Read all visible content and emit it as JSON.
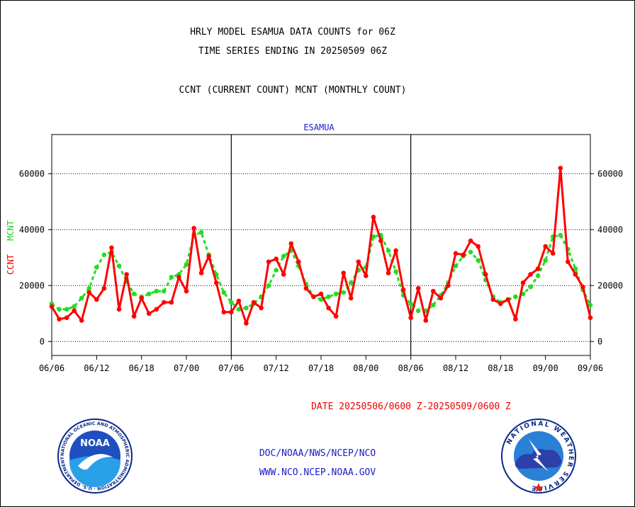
{
  "header": {
    "line1": "HRLY MODEL ESAMUA DATA COUNTS for 06Z",
    "line2": "TIME SERIES ENDING IN 20250509 06Z",
    "line3": "CCNT (CURRENT COUNT) MCNT (MONTHLY COUNT)"
  },
  "chart_data": {
    "type": "line",
    "title": "ESAMUA",
    "ylabel_ccnt": "CCNT",
    "ylabel_mcnt": "MCNT",
    "ylim": [
      -5000,
      74000
    ],
    "yticks": [
      0,
      20000,
      40000,
      60000
    ],
    "ytick_labels": [
      "0",
      "20000",
      "40000",
      "60000"
    ],
    "xticks": [
      "06/06",
      "06/12",
      "06/18",
      "07/00",
      "07/06",
      "07/12",
      "07/18",
      "08/00",
      "08/06",
      "08/12",
      "08/18",
      "09/00",
      "09/06"
    ],
    "x_hours": [
      0,
      72
    ],
    "grid": true,
    "series": [
      {
        "name": "CCNT",
        "color": "#ff0000",
        "x": [
          0,
          1,
          2,
          3,
          4,
          5,
          6,
          7,
          8,
          9,
          10,
          11,
          12,
          13,
          14,
          15,
          16,
          17,
          18,
          19,
          20,
          21,
          22,
          23,
          24,
          25,
          26,
          27,
          28,
          29,
          30,
          31,
          32,
          33,
          34,
          35,
          36,
          37,
          38,
          39,
          40,
          41,
          42,
          43,
          44,
          45,
          46,
          47,
          48,
          49,
          50,
          51,
          52,
          53,
          54,
          55,
          56,
          57,
          58,
          59,
          60,
          61,
          62,
          63,
          64,
          65,
          66,
          67,
          68,
          69,
          70,
          71,
          72
        ],
        "values": [
          12500,
          8000,
          8500,
          11000,
          7500,
          17500,
          15000,
          19000,
          33500,
          11500,
          24000,
          9000,
          15500,
          10000,
          11500,
          14000,
          14000,
          23000,
          18000,
          40500,
          24500,
          30500,
          21000,
          10500,
          10500,
          14500,
          6500,
          14000,
          12000,
          28500,
          29500,
          24000,
          35000,
          28500,
          19000,
          16000,
          17000,
          12000,
          9000,
          24500,
          15500,
          28500,
          23500,
          44500,
          36000,
          24500,
          32500,
          18500,
          8500,
          19000,
          7500,
          18000,
          15500,
          20000,
          31500,
          31000,
          36000,
          34000,
          24000,
          15000,
          13500,
          15000,
          8000,
          21000,
          24000,
          26000,
          34000,
          31500,
          62000,
          28500,
          24000,
          19500,
          8500
        ]
      },
      {
        "name": "MCNT",
        "color": "#22dd22",
        "x": [
          0,
          1,
          2,
          3,
          4,
          5,
          6,
          7,
          8,
          9,
          10,
          11,
          12,
          13,
          14,
          15,
          16,
          17,
          18,
          19,
          20,
          21,
          22,
          23,
          24,
          25,
          26,
          27,
          28,
          29,
          30,
          31,
          32,
          33,
          34,
          35,
          36,
          37,
          38,
          39,
          40,
          41,
          42,
          43,
          44,
          45,
          46,
          47,
          48,
          49,
          50,
          51,
          52,
          53,
          54,
          55,
          56,
          57,
          58,
          59,
          60,
          61,
          62,
          63,
          64,
          65,
          66,
          67,
          68,
          69,
          70,
          71,
          72
        ],
        "values": [
          13500,
          11500,
          11500,
          12500,
          15500,
          19000,
          26500,
          31000,
          32000,
          27000,
          21500,
          17000,
          16000,
          17000,
          18000,
          18000,
          23000,
          24000,
          27500,
          38000,
          39000,
          31000,
          24000,
          17500,
          14000,
          11500,
          12000,
          13500,
          16000,
          20000,
          25500,
          30500,
          32500,
          27000,
          20500,
          16000,
          15000,
          16000,
          17000,
          17500,
          21000,
          25500,
          26500,
          37500,
          38000,
          32500,
          25000,
          16500,
          13500,
          11000,
          11000,
          13000,
          16500,
          21000,
          27000,
          30500,
          32000,
          29000,
          22000,
          16000,
          14000,
          15000,
          16000,
          17000,
          19500,
          23500,
          29000,
          37500,
          38000,
          33000,
          26000,
          18500,
          13000
        ]
      }
    ]
  },
  "date_range": "DATE 20250506/0600 Z-20250509/0600 Z",
  "footer": {
    "line1": "DOC/NOAA/NWS/NCEP/NCO",
    "line2": "WWW.NCO.NCEP.NOAA.GOV"
  },
  "logos": {
    "noaa_text": "NOAA",
    "noaa_ring": "NATIONAL OCEANIC AND ATMOSPHERIC ADMINISTRATION · U.S. DEPARTMENT OF COMMERCE ·",
    "nws_ring": "NATIONAL WEATHER SERVICE"
  }
}
